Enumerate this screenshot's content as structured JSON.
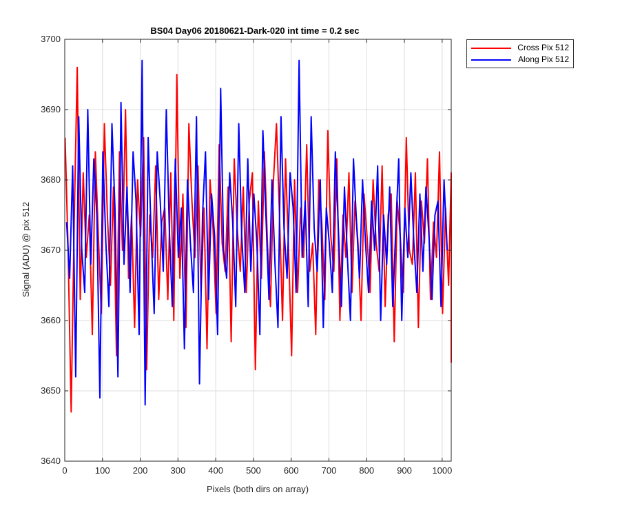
{
  "chart_data": {
    "type": "line",
    "title": "BS04 Day06 20180621-Dark-020 int time = 0.2 sec",
    "xlabel": "Pixels (both dirs on array)",
    "ylabel": "Signal (ADU) @ pix 512",
    "xlim": [
      0,
      1024
    ],
    "ylim": [
      3640,
      3700
    ],
    "xticks": [
      0,
      100,
      200,
      300,
      400,
      500,
      600,
      700,
      800,
      900,
      1000
    ],
    "yticks": [
      3640,
      3650,
      3660,
      3670,
      3680,
      3690,
      3700
    ],
    "grid": true,
    "legend_position": "outside-top-right",
    "series": [
      {
        "name": "Cross Pix 512",
        "color": "#ff0000",
        "x_start": 1,
        "x_step": 8,
        "values": [
          3686,
          3670,
          3647,
          3674,
          3696,
          3663,
          3681,
          3669,
          3675,
          3658,
          3684,
          3672,
          3661,
          3688,
          3675,
          3665,
          3679,
          3655,
          3684,
          3670,
          3690,
          3666,
          3675,
          3659,
          3680,
          3672,
          3686,
          3653,
          3675,
          3669,
          3682,
          3663,
          3674,
          3676,
          3663,
          3681,
          3660,
          3695,
          3666,
          3678,
          3659,
          3688,
          3677,
          3669,
          3682,
          3664,
          3676,
          3656,
          3680,
          3673,
          3661,
          3685,
          3671,
          3667,
          3679,
          3657,
          3683,
          3673,
          3667,
          3679,
          3664,
          3677,
          3681,
          3653,
          3677,
          3666,
          3684,
          3671,
          3662,
          3680,
          3688,
          3675,
          3660,
          3683,
          3670,
          3655,
          3680,
          3664,
          3676,
          3669,
          3685,
          3667,
          3671,
          3658,
          3680,
          3674,
          3663,
          3687,
          3672,
          3667,
          3683,
          3660,
          3675,
          3669,
          3681,
          3664,
          3677,
          3671,
          3660,
          3678,
          3672,
          3664,
          3680,
          3671,
          3667,
          3682,
          3662,
          3675,
          3678,
          3657,
          3677,
          3672,
          3664,
          3686,
          3670,
          3668,
          3681,
          3659,
          3677,
          3671,
          3683,
          3663,
          3674,
          3669,
          3684,
          3661,
          3676,
          3665,
          3681,
          3672,
          3654
        ]
      },
      {
        "name": "Along Pix 512",
        "color": "#0000ff",
        "x_start": 5,
        "x_step": 8,
        "values": [
          3674,
          3666,
          3682,
          3652,
          3689,
          3670,
          3664,
          3690,
          3668,
          3683,
          3675,
          3649,
          3684,
          3671,
          3662,
          3688,
          3676,
          3652,
          3691,
          3668,
          3679,
          3664,
          3684,
          3677,
          3658,
          3697,
          3648,
          3686,
          3672,
          3661,
          3684,
          3677,
          3667,
          3690,
          3673,
          3662,
          3683,
          3669,
          3676,
          3656,
          3680,
          3671,
          3664,
          3689,
          3651,
          3675,
          3684,
          3663,
          3678,
          3672,
          3658,
          3693,
          3670,
          3666,
          3681,
          3674,
          3662,
          3688,
          3672,
          3664,
          3683,
          3667,
          3678,
          3671,
          3658,
          3687,
          3675,
          3663,
          3680,
          3668,
          3659,
          3689,
          3673,
          3666,
          3681,
          3676,
          3664,
          3697,
          3669,
          3677,
          3662,
          3689,
          3673,
          3667,
          3680,
          3659,
          3676,
          3671,
          3664,
          3684,
          3673,
          3662,
          3679,
          3669,
          3660,
          3683,
          3674,
          3666,
          3680,
          3671,
          3664,
          3677,
          3670,
          3682,
          3660,
          3675,
          3668,
          3679,
          3662,
          3673,
          3683,
          3660,
          3676,
          3669,
          3681,
          3671,
          3664,
          3678,
          3667,
          3679,
          3672,
          3663,
          3675,
          3677,
          3662,
          3680,
          3670
        ]
      }
    ]
  }
}
